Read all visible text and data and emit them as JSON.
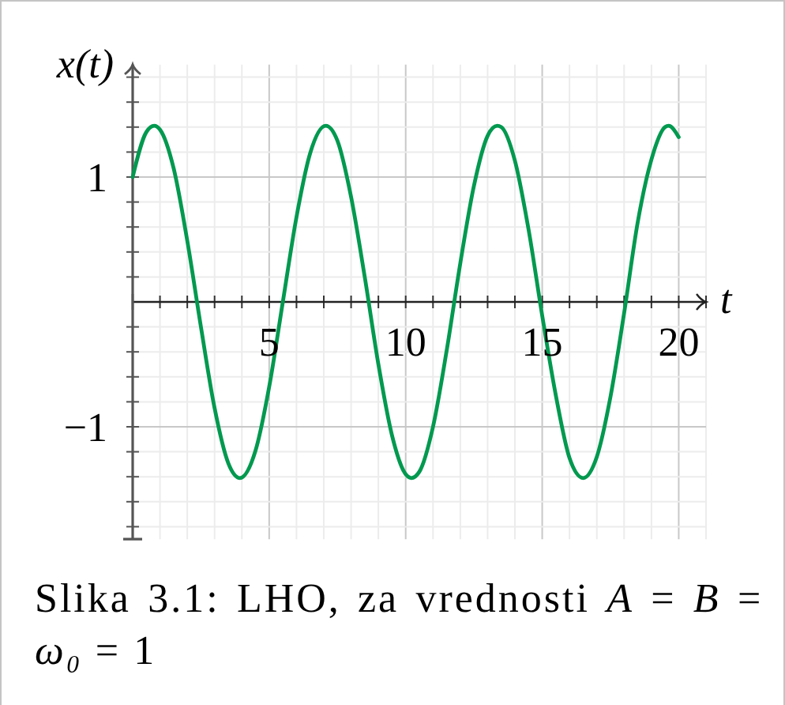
{
  "chart_data": {
    "type": "line",
    "xlabel": "t",
    "ylabel": "x(t)",
    "annotations": [
      "Slika 3.1: LHO, za vrednosti A = B = ω₀ = 1"
    ],
    "x": [
      0,
      0.5,
      0.79,
      1,
      1.5,
      2,
      2.5,
      3,
      3.5,
      3.93,
      4.5,
      5,
      5.5,
      6,
      6.5,
      7.07,
      7.5,
      8,
      8.5,
      9,
      9.5,
      10,
      10.21,
      10.5,
      11,
      11.5,
      12,
      12.5,
      13,
      13.35,
      13.5,
      14,
      14.5,
      15,
      15.5,
      16,
      16.5,
      17,
      17.5,
      18,
      18.5,
      19,
      19.5,
      19.63,
      20
    ],
    "series": [
      {
        "color": "#00994f",
        "values": [
          1,
          1.36,
          1.41,
          1.38,
          1.07,
          0.49,
          -0.2,
          -0.85,
          -1.29,
          -1.41,
          -1.19,
          -0.68,
          0,
          0.68,
          1.19,
          1.41,
          1.29,
          0.84,
          0.2,
          -0.5,
          -1.07,
          -1.38,
          -1.41,
          -1.36,
          -1,
          -0.39,
          0.31,
          0.93,
          1.33,
          1.41,
          1.4,
          1.13,
          0.58,
          -0.11,
          -0.75,
          -1.25,
          -1.41,
          -1.24,
          -0.76,
          -0.09,
          0.64,
          1.14,
          1.4,
          1.41,
          1.32
        ]
      }
    ],
    "xlim": [
      0,
      21
    ],
    "ylim": [
      -1.9,
      1.9
    ],
    "xticks": [
      {
        "value": 1,
        "label": null
      },
      {
        "value": 2,
        "label": null
      },
      {
        "value": 3,
        "label": null
      },
      {
        "value": 4,
        "label": null
      },
      5,
      {
        "value": 6,
        "label": null
      },
      {
        "value": 7,
        "label": null
      },
      {
        "value": 8,
        "label": null
      },
      {
        "value": 9,
        "label": null
      },
      10,
      {
        "value": 11,
        "label": null
      },
      {
        "value": 12,
        "label": null
      },
      {
        "value": 13,
        "label": null
      },
      {
        "value": 14,
        "label": null
      },
      15,
      {
        "value": 16,
        "label": null
      },
      {
        "value": 17,
        "label": null
      },
      {
        "value": 18,
        "label": null
      },
      {
        "value": 19,
        "label": null
      },
      20,
      {
        "value": 21,
        "label": null
      }
    ],
    "yticks": [
      {
        "value": -1.8,
        "label": null
      },
      {
        "value": -1.6,
        "label": null
      },
      {
        "value": -1.4,
        "label": null
      },
      {
        "value": -1.2,
        "label": null
      },
      -1,
      {
        "value": -0.8,
        "label": null
      },
      {
        "value": -0.6,
        "label": null
      },
      {
        "value": -0.4,
        "label": null
      },
      {
        "value": -0.2,
        "label": null
      },
      {
        "value": 0.2,
        "label": null
      },
      {
        "value": 0.4,
        "label": null
      },
      {
        "value": 0.6,
        "label": null
      },
      {
        "value": 0.8,
        "label": null
      },
      1,
      {
        "value": 1.2,
        "label": null
      },
      {
        "value": 1.4,
        "label": null
      },
      {
        "value": 1.6,
        "label": null
      },
      {
        "value": 1.8,
        "label": null
      }
    ],
    "grid": true,
    "line_style": "solid"
  }
}
